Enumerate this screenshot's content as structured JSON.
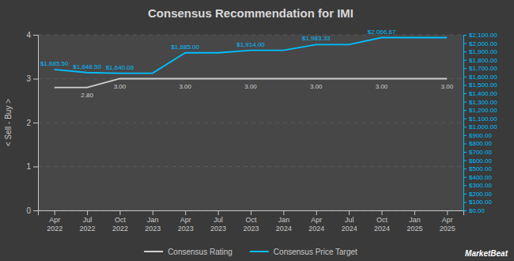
{
  "chart_data": {
    "type": "line",
    "title": "Consensus Recommendation for IMI",
    "ylabel": "< Sell - Buy >",
    "categories": [
      "Apr\n2022",
      "Jul\n2022",
      "Oct\n2022",
      "Jan\n2023",
      "Apr\n2023",
      "Jul\n2023",
      "Oct\n2023",
      "Jan\n2024",
      "Apr\n2024",
      "Jul\n2024",
      "Oct\n2024",
      "Jan\n2025",
      "Apr\n2025"
    ],
    "series": [
      {
        "name": "Consensus Rating",
        "color": "#d0d0d0",
        "axis": "y",
        "values": [
          2.8,
          2.8,
          3.0,
          3.0,
          3.0,
          3.0,
          3.0,
          3.0,
          3.0,
          3.0,
          3.0,
          3.0,
          3.0
        ],
        "value_labels": [
          null,
          "2.80",
          "3.00",
          null,
          "3.00",
          null,
          "3.00",
          null,
          "3.00",
          null,
          "3.00",
          null,
          "3.00"
        ]
      },
      {
        "name": "Consensus Price Target",
        "color": "#00bfff",
        "axis": "y2",
        "values": [
          1685.5,
          1648.5,
          1640.08,
          1640.08,
          1885.0,
          1885.0,
          1914.0,
          1914.0,
          1983.33,
          1983.33,
          2066.67,
          2066.67,
          2066.67
        ],
        "value_labels": [
          "$1,685.50",
          "$1,648.50",
          "$1,640.08",
          null,
          "$1,885.00",
          null,
          "$1,914.00",
          null,
          "$1,983.33",
          null,
          "$2,066.67",
          null,
          null
        ]
      }
    ],
    "data_labels": true,
    "ylim": [
      0,
      4
    ],
    "yticks": [
      0,
      1,
      2,
      3,
      4
    ],
    "y2lim": [
      0,
      2100
    ],
    "y2ticks": [
      {
        "value": 0,
        "label": "$0.00"
      },
      {
        "value": 100,
        "label": "$100.00"
      },
      {
        "value": 200,
        "label": "$200.00"
      },
      {
        "value": 300,
        "label": "$300.00"
      },
      {
        "value": 400,
        "label": "$400.00"
      },
      {
        "value": 500,
        "label": "$500.00"
      },
      {
        "value": 600,
        "label": "$600.00"
      },
      {
        "value": 700,
        "label": "$700.00"
      },
      {
        "value": 800,
        "label": "$800.00"
      },
      {
        "value": 900,
        "label": "$900.00"
      },
      {
        "value": 1000,
        "label": "$1,000.00"
      },
      {
        "value": 1100,
        "label": "$1,100.00"
      },
      {
        "value": 1200,
        "label": "$1,200.00"
      },
      {
        "value": 1300,
        "label": "$1,300.00"
      },
      {
        "value": 1400,
        "label": "$1,400.00"
      },
      {
        "value": 1500,
        "label": "$1,500.00"
      },
      {
        "value": 1600,
        "label": "$1,600.00"
      },
      {
        "value": 1700,
        "label": "$1,700.00"
      },
      {
        "value": 1800,
        "label": "$1,800.00"
      },
      {
        "value": 1900,
        "label": "$1,900.00"
      },
      {
        "value": 2000,
        "label": "$2,000.00"
      },
      {
        "value": 2100,
        "label": "$2,100.00"
      }
    ],
    "grid": true,
    "legend": "bottom",
    "watermark": "MarketBeat"
  }
}
